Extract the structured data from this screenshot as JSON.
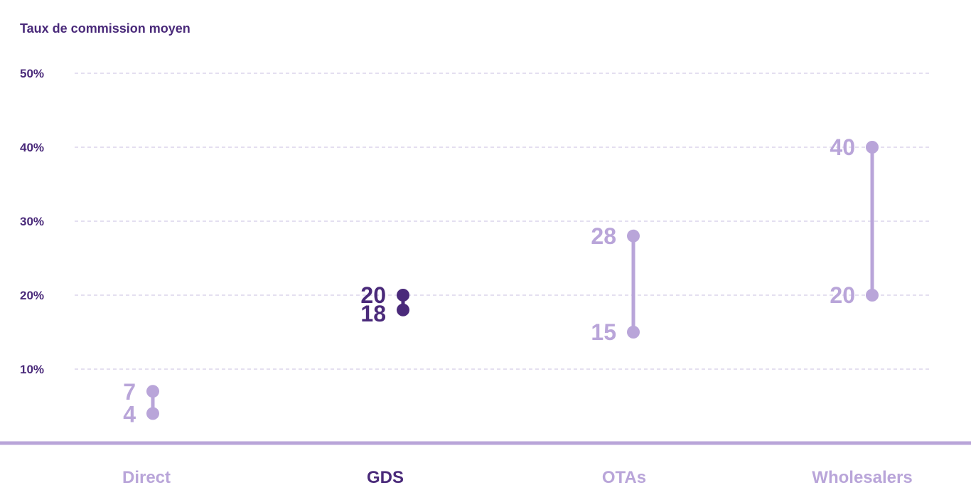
{
  "chart_data": {
    "type": "range",
    "title": "",
    "ylabel": "Taux de commission moyen",
    "xlabel": "",
    "ylim": [
      0,
      50
    ],
    "yticks": [
      10,
      20,
      30,
      40,
      50
    ],
    "ytick_labels": [
      "10%",
      "20%",
      "30%",
      "40%",
      "50%"
    ],
    "grid": true,
    "categories": [
      "Direct",
      "GDS",
      "OTAs",
      "Wholesalers"
    ],
    "ranges": [
      {
        "category": "Direct",
        "low": 4,
        "high": 7,
        "low_label": "4",
        "high_label": "7",
        "highlight": false
      },
      {
        "category": "GDS",
        "low": 18,
        "high": 20,
        "low_label": "18",
        "high_label": "20",
        "highlight": true
      },
      {
        "category": "OTAs",
        "low": 15,
        "high": 28,
        "low_label": "15",
        "high_label": "28",
        "highlight": false
      },
      {
        "category": "Wholesalers",
        "low": 20,
        "high": 40,
        "low_label": "20",
        "high_label": "40",
        "highlight": false
      }
    ],
    "colors": {
      "default": "#b9a5d9",
      "highlight": "#4a2a7a",
      "axis_text": "#4a2a7a",
      "grid": "#c9bfe0"
    }
  }
}
